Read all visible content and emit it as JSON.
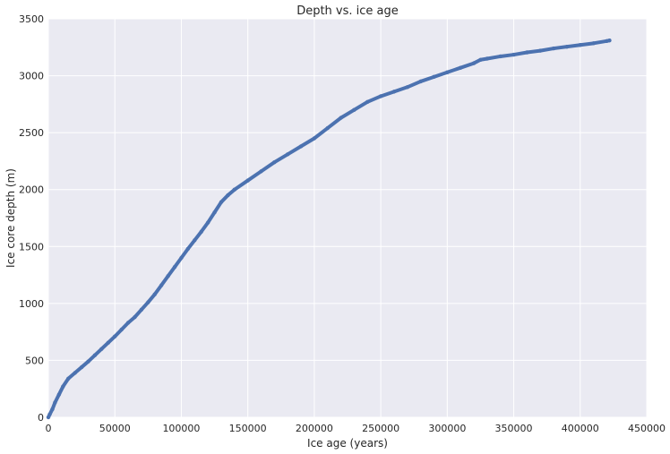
{
  "chart_data": {
    "type": "scatter",
    "title": "Depth vs. ice age",
    "xlabel": "Ice age (years)",
    "ylabel": "Ice core depth (m)",
    "xlim": [
      0,
      450000
    ],
    "ylim": [
      0,
      3500
    ],
    "xticks": [
      "0",
      "50000",
      "100000",
      "150000",
      "200000",
      "250000",
      "300000",
      "350000",
      "400000",
      "450000"
    ],
    "yticks": [
      "0",
      "500",
      "1000",
      "1500",
      "2000",
      "2500",
      "3000",
      "3500"
    ],
    "grid": true,
    "colors": {
      "background": "#EAEAF2",
      "grid": "#FFFFFF",
      "series": "#4C72B0"
    },
    "series": [
      {
        "points": [
          [
            0,
            0
          ],
          [
            1000,
            25
          ],
          [
            3000,
            70
          ],
          [
            5000,
            130
          ],
          [
            8000,
            200
          ],
          [
            11000,
            270
          ],
          [
            15000,
            340
          ],
          [
            20000,
            390
          ],
          [
            25000,
            440
          ],
          [
            30000,
            490
          ],
          [
            35000,
            545
          ],
          [
            40000,
            600
          ],
          [
            45000,
            655
          ],
          [
            50000,
            710
          ],
          [
            55000,
            770
          ],
          [
            60000,
            830
          ],
          [
            65000,
            880
          ],
          [
            70000,
            945
          ],
          [
            75000,
            1010
          ],
          [
            80000,
            1080
          ],
          [
            85000,
            1160
          ],
          [
            90000,
            1240
          ],
          [
            95000,
            1320
          ],
          [
            100000,
            1400
          ],
          [
            105000,
            1480
          ],
          [
            110000,
            1555
          ],
          [
            115000,
            1630
          ],
          [
            120000,
            1710
          ],
          [
            125000,
            1800
          ],
          [
            130000,
            1890
          ],
          [
            135000,
            1950
          ],
          [
            140000,
            2000
          ],
          [
            150000,
            2080
          ],
          [
            160000,
            2160
          ],
          [
            170000,
            2240
          ],
          [
            180000,
            2310
          ],
          [
            190000,
            2380
          ],
          [
            200000,
            2450
          ],
          [
            210000,
            2540
          ],
          [
            220000,
            2630
          ],
          [
            230000,
            2700
          ],
          [
            240000,
            2770
          ],
          [
            250000,
            2820
          ],
          [
            260000,
            2860
          ],
          [
            270000,
            2900
          ],
          [
            280000,
            2950
          ],
          [
            290000,
            2990
          ],
          [
            300000,
            3030
          ],
          [
            310000,
            3070
          ],
          [
            320000,
            3110
          ],
          [
            325000,
            3140
          ],
          [
            330000,
            3150
          ],
          [
            340000,
            3170
          ],
          [
            350000,
            3185
          ],
          [
            360000,
            3205
          ],
          [
            370000,
            3220
          ],
          [
            380000,
            3240
          ],
          [
            390000,
            3255
          ],
          [
            400000,
            3270
          ],
          [
            410000,
            3285
          ],
          [
            420000,
            3305
          ],
          [
            422000,
            3310
          ]
        ]
      }
    ]
  }
}
